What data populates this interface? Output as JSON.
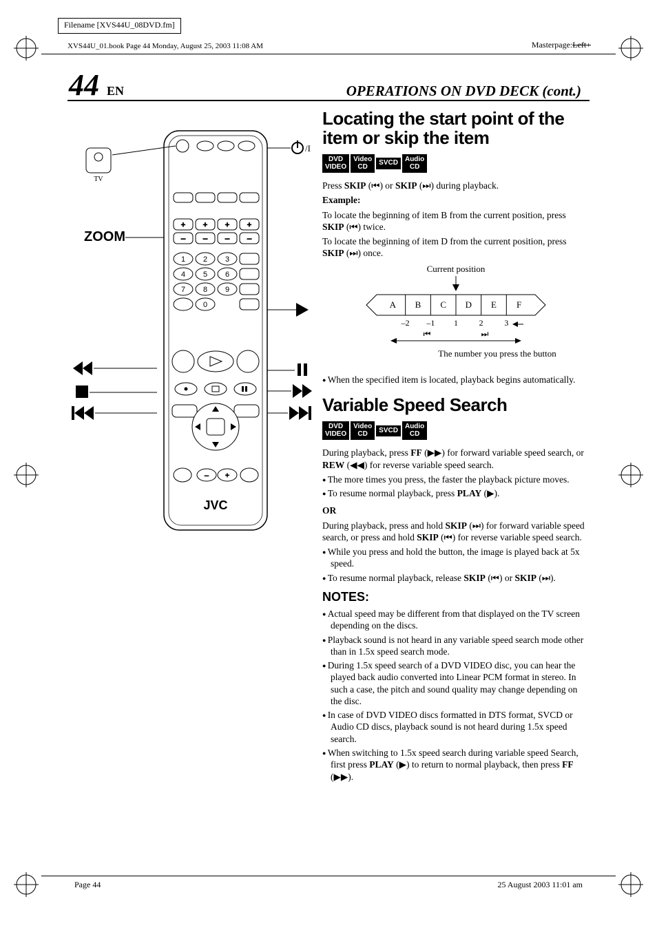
{
  "meta": {
    "filename_label": "Filename [XVS44U_08DVD.fm]",
    "book_line": "XVS44U_01.book  Page 44  Monday, August 25, 2003  11:08 AM",
    "masterpage_prefix": "Masterpage:",
    "masterpage_struck": "Left+"
  },
  "page": {
    "num": "44",
    "en": "EN",
    "section_title": "OPERATIONS ON DVD DECK (cont.)"
  },
  "remote": {
    "zoom_label": "ZOOM",
    "tv_label": "TV",
    "brand": "JVC",
    "keys": [
      "1",
      "2",
      "3",
      "4",
      "5",
      "6",
      "7",
      "8",
      "9",
      "0"
    ]
  },
  "sec1": {
    "heading": "Locating the start point of the item or skip the item",
    "badges": [
      "DVD\nVIDEO",
      "Video\nCD",
      "SVCD",
      "Audio\nCD"
    ],
    "press_line_a": "Press ",
    "press_line_b": "SKIP",
    "press_line_c": " (",
    "press_sym1": "⏮",
    "press_line_d": ") or ",
    "press_line_e": "SKIP",
    "press_line_f": " (",
    "press_sym2": "⏭",
    "press_line_g": ") during playback.",
    "example_h": "Example:",
    "example_l1a": "To locate the beginning of item B from the current position, press ",
    "example_l1b": "SKIP",
    "example_l1c": " (",
    "example_l1_sym": "⏮",
    "example_l1d": ") twice.",
    "example_l2a": "To locate the beginning of item D from the current position, press ",
    "example_l2b": "SKIP",
    "example_l2c": " (",
    "example_l2_sym": "⏭",
    "example_l2d": ") once.",
    "diagram": {
      "current_pos_label": "Current position",
      "items": [
        "A",
        "B",
        "C",
        "D",
        "E",
        "F"
      ],
      "offsets": [
        "–2",
        "–1",
        "1",
        "2",
        "3"
      ],
      "button_note": "The number you press the button"
    },
    "bullet1": "When the specified item is located, playback begins automatically."
  },
  "sec2": {
    "heading": "Variable Speed Search",
    "badges": [
      "DVD\nVIDEO",
      "Video\nCD",
      "SVCD",
      "Audio\nCD"
    ],
    "p1": "During playback, press <b>FF</b> (▶▶) for forward variable speed search, or <b>REW</b> (◀◀) for reverse variable speed search.",
    "b1": "The more times you press, the faster the playback picture moves.",
    "b2": "To resume normal playback, press <b>PLAY</b> (▶).",
    "or": "OR",
    "p2": "During playback, press and hold <b>SKIP</b> (⏭) for forward variable speed search, or press and hold <b>SKIP</b> (⏮) for reverse variable speed search.",
    "b3": "While you press and hold the button, the image is played back at 5x speed.",
    "b4": "To resume normal playback, release <b>SKIP</b> (⏮) or <b>SKIP</b> (⏭).",
    "notes_h": "NOTES:",
    "notes": [
      "Actual speed may be different from that displayed on the TV screen depending on the discs.",
      "Playback sound is not heard in any variable speed search mode other than in 1.5x speed search mode.",
      "During 1.5x speed search of a DVD VIDEO disc, you can hear the played back audio converted into Linear PCM format in stereo. In such a case, the pitch and sound quality may change depending on the disc.",
      "In case of DVD VIDEO discs formatted in DTS format, SVCD or Audio CD discs, playback sound is not heard during 1.5x speed search.",
      "When switching to 1.5x speed search during variable speed Search, first press <b>PLAY</b> (▶) to return to normal playback, then press <b>FF</b> (▶▶)."
    ]
  },
  "footer": {
    "left": "Page 44",
    "right": "25 August 2003 11:01 am"
  }
}
